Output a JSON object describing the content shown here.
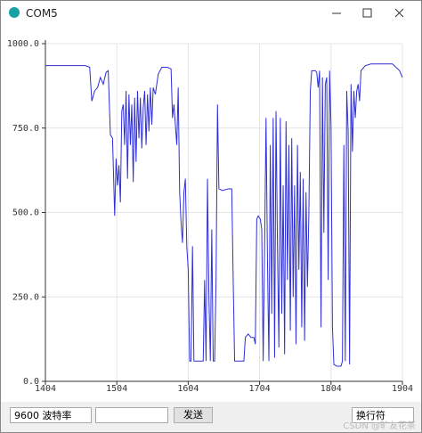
{
  "window": {
    "title": "COM5"
  },
  "chart_data": {
    "type": "line",
    "color": "#2f2fd8",
    "grid": true,
    "xlim": [
      1404,
      1904
    ],
    "xticks": [
      1404,
      1504,
      1604,
      1704,
      1804,
      1904
    ],
    "ylim": [
      0,
      1000
    ],
    "yticks": [
      {
        "value": 0,
        "label": "0.0"
      },
      {
        "value": 250,
        "label": "250.0"
      },
      {
        "value": 500,
        "label": "500.0"
      },
      {
        "value": 750,
        "label": "750.0"
      },
      {
        "value": 1000,
        "label": "1000.0"
      }
    ],
    "x": [
      1404,
      1460,
      1466,
      1469,
      1473,
      1477,
      1481,
      1485,
      1489,
      1492,
      1495,
      1498,
      1501,
      1503,
      1505,
      1507,
      1509,
      1511,
      1513,
      1515,
      1517,
      1519,
      1521,
      1523,
      1525,
      1527,
      1529,
      1531,
      1533,
      1535,
      1537,
      1539,
      1541,
      1543,
      1545,
      1547,
      1549,
      1551,
      1553,
      1555,
      1558,
      1562,
      1567,
      1575,
      1580,
      1582,
      1584,
      1586,
      1588,
      1590,
      1592,
      1594,
      1596,
      1598,
      1600,
      1602,
      1604,
      1606,
      1608,
      1610,
      1612,
      1614,
      1620,
      1625,
      1627,
      1629,
      1631,
      1633,
      1635,
      1637,
      1639,
      1641,
      1643,
      1645,
      1647,
      1652,
      1660,
      1665,
      1667,
      1669,
      1675,
      1682,
      1684,
      1688,
      1692,
      1696,
      1698,
      1700,
      1702,
      1705,
      1707,
      1709,
      1711,
      1713,
      1715,
      1717,
      1719,
      1721,
      1723,
      1725,
      1727,
      1729,
      1731,
      1733,
      1735,
      1737,
      1739,
      1741,
      1743,
      1745,
      1747,
      1749,
      1751,
      1753,
      1755,
      1757,
      1759,
      1761,
      1763,
      1765,
      1767,
      1769,
      1771,
      1773,
      1775,
      1777,
      1779,
      1782,
      1784,
      1786,
      1788,
      1790,
      1792,
      1794,
      1796,
      1798,
      1800,
      1802,
      1804,
      1806,
      1808,
      1812,
      1816,
      1818,
      1820,
      1822,
      1824,
      1826,
      1828,
      1830,
      1832,
      1834,
      1836,
      1838,
      1840,
      1842,
      1844,
      1846,
      1852,
      1860,
      1870,
      1880,
      1890,
      1900,
      1904
    ],
    "values": [
      935,
      935,
      930,
      830,
      860,
      870,
      900,
      880,
      915,
      920,
      730,
      720,
      490,
      660,
      580,
      640,
      530,
      800,
      820,
      700,
      860,
      600,
      850,
      700,
      820,
      590,
      840,
      650,
      860,
      720,
      840,
      690,
      810,
      860,
      700,
      850,
      740,
      870,
      760,
      870,
      850,
      910,
      930,
      930,
      925,
      780,
      820,
      760,
      700,
      870,
      560,
      470,
      410,
      560,
      600,
      400,
      330,
      60,
      60,
      400,
      60,
      60,
      60,
      60,
      300,
      60,
      600,
      250,
      60,
      450,
      60,
      60,
      300,
      820,
      570,
      565,
      570,
      570,
      300,
      60,
      60,
      60,
      130,
      140,
      130,
      130,
      110,
      480,
      490,
      480,
      450,
      60,
      400,
      780,
      360,
      60,
      700,
      200,
      780,
      70,
      800,
      400,
      100,
      780,
      200,
      580,
      80,
      770,
      300,
      700,
      150,
      720,
      250,
      580,
      110,
      700,
      330,
      620,
      160,
      600,
      120,
      560,
      280,
      500,
      860,
      920,
      920,
      920,
      915,
      870,
      920,
      160,
      900,
      440,
      880,
      900,
      300,
      920,
      760,
      160,
      50,
      45,
      45,
      45,
      60,
      700,
      60,
      860,
      740,
      50,
      880,
      680,
      860,
      780,
      860,
      880,
      830,
      920,
      935,
      940,
      940,
      940,
      940,
      920,
      900
    ]
  },
  "controls": {
    "baud": "9600 波特率",
    "send": "发送",
    "line_ending": "换行符"
  },
  "watermark": "CSDN @旷友花茶"
}
